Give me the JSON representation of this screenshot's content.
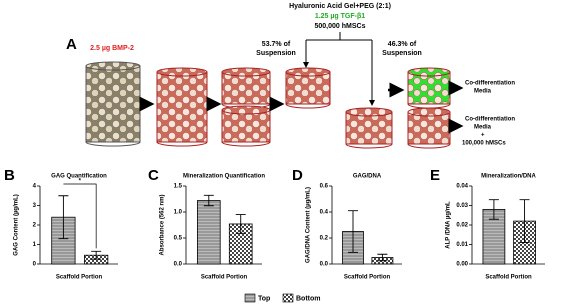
{
  "diagram": {
    "panel": "A",
    "bmp": "2.5 µg BMP-2",
    "gel": "Hyaluronic Acid Gel+PEG (2:1)",
    "tgf": "1.25 µg TGF-β1",
    "cells": "500,000 hMSCs",
    "split_left": [
      "53.7% of",
      "Suspension"
    ],
    "split_right": [
      "46.3% of",
      "Suspension"
    ],
    "media_top": [
      "Co-differentiation",
      "Media"
    ],
    "media_bottom": [
      "Co-differentiation",
      "Media",
      "+",
      "100,000 hMSCs"
    ]
  },
  "chart_data": [
    {
      "type": "bar",
      "panel": "B",
      "title": "GAG  Quantification",
      "ylabel": "GAG Content (µg/mL)",
      "xlabel": "Scaffold Portion",
      "values": [
        2.4,
        0.45
      ],
      "errors": [
        1.1,
        0.2
      ],
      "ylim": [
        0,
        4
      ],
      "yticks": [
        0,
        1,
        2,
        3,
        4
      ],
      "significance": "*"
    },
    {
      "type": "bar",
      "panel": "C",
      "title": "Mineralization Quantification",
      "ylabel": "Absorbance (562 nm)",
      "xlabel": "Scaffold Portion",
      "values": [
        1.22,
        0.77
      ],
      "errors": [
        0.1,
        0.18
      ],
      "ylim": [
        0,
        1.5
      ],
      "yticks": [
        {
          "value": 0,
          "label": "0.0"
        },
        {
          "value": 0.5,
          "label": "0.5"
        },
        {
          "value": 1,
          "label": "1.0"
        },
        {
          "value": 1.5,
          "label": "1.5"
        }
      ]
    },
    {
      "type": "bar",
      "panel": "D",
      "title": "GAG/DNA",
      "ylabel": "GAG/DNA Content (µg/mL)",
      "xlabel": "Scaffold Portion",
      "values": [
        0.25,
        0.05
      ],
      "errors": [
        0.16,
        0.025
      ],
      "ylim": [
        0,
        0.6
      ],
      "yticks": [
        {
          "value": 0,
          "label": "0.0"
        },
        {
          "value": 0.2,
          "label": "0.2"
        },
        {
          "value": 0.4,
          "label": "0.4"
        },
        {
          "value": 0.6,
          "label": "0.6"
        }
      ]
    },
    {
      "type": "bar",
      "panel": "E",
      "title": "Mineralization/DNA",
      "ylabel": "ALP /DNA µg/mL",
      "xlabel": "Scaffold Portion",
      "values": [
        0.028,
        0.022
      ],
      "errors": [
        0.005,
        0.011
      ],
      "ylim": [
        0,
        0.04
      ],
      "yticks": [
        {
          "value": 0,
          "label": "0.00"
        },
        {
          "value": 0.01,
          "label": "0.01"
        },
        {
          "value": 0.02,
          "label": "0.02"
        },
        {
          "value": 0.03,
          "label": "0.03"
        },
        {
          "value": 0.04,
          "label": "0.04"
        }
      ]
    }
  ],
  "legend": [
    "Top",
    "Bottom"
  ]
}
